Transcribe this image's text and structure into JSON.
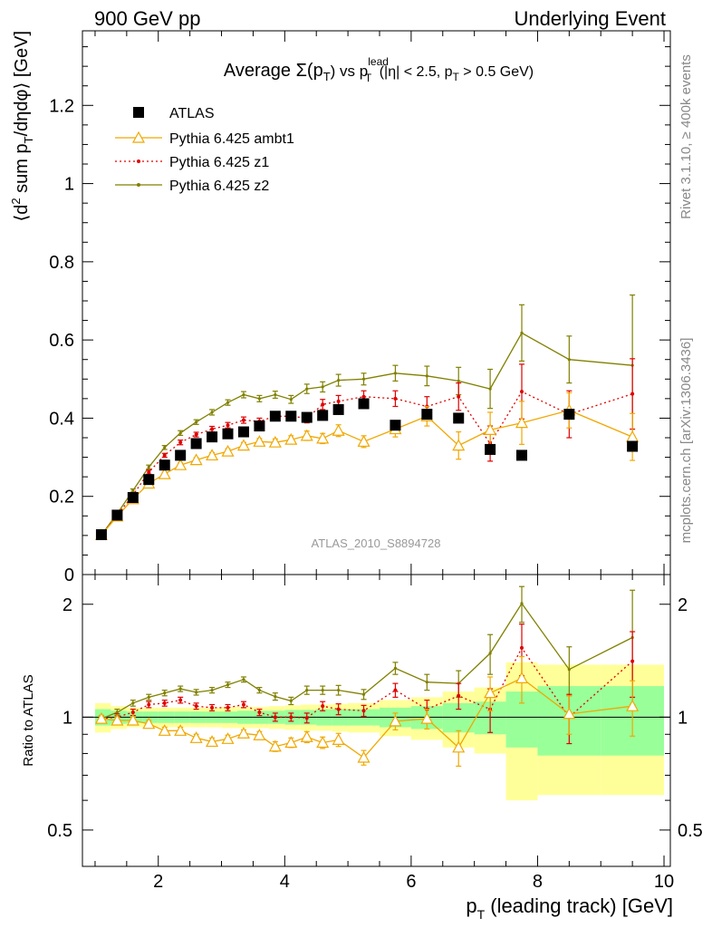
{
  "header": {
    "left": "900 GeV pp",
    "right": "Underlying Event"
  },
  "side_labels": {
    "rivet": "Rivet 3.1.10, ≥ 400k events",
    "mcplots": "mcplots.cern.ch [arXiv:1306.3436]"
  },
  "chart_data": [
    {
      "type": "line",
      "panel": "main",
      "title": {
        "prefix": "Average ",
        "sigma": "Σ(p",
        "sub_T": "T",
        "vs": ") vs p",
        "sup_lead": "lead",
        "tail": " (|η| < 2.5, p",
        "tail2": " > 0.5 GeV)"
      },
      "ylabel": {
        "a": "⟨d",
        "sup2": "2",
        "b": " sum p",
        "subT": "T",
        "c": "/dηdφ⟩ [GeV]"
      },
      "watermark": "ATLAS_2010_S8894728",
      "ylim": [
        0,
        1.4
      ],
      "yticks": [
        0,
        0.2,
        0.4,
        0.6,
        0.8,
        1,
        1.2
      ],
      "ytick_labels": [
        "0",
        "0.2",
        "0.4",
        "0.6",
        "0.8",
        "1",
        "1.2"
      ],
      "x": [
        1.1,
        1.35,
        1.6,
        1.85,
        2.1,
        2.35,
        2.6,
        2.85,
        3.1,
        3.35,
        3.6,
        3.85,
        4.1,
        4.35,
        4.6,
        4.85,
        5.25,
        5.75,
        6.25,
        6.75,
        7.25,
        7.75,
        8.5,
        9.5
      ],
      "legend": [
        "ATLAS",
        "Pythia 6.425 ambt1",
        "Pythia 6.425 z1",
        "Pythia 6.425 z2"
      ],
      "series": [
        {
          "name": "ATLAS",
          "style": "data",
          "color": "#000000",
          "values": [
            0.102,
            0.152,
            0.197,
            0.243,
            0.28,
            0.305,
            0.335,
            0.352,
            0.36,
            0.365,
            0.38,
            0.405,
            0.405,
            0.402,
            0.407,
            0.422,
            0.437,
            0.382,
            0.41,
            0.4,
            0.32,
            0.305,
            0.41,
            0.328
          ]
        },
        {
          "name": "Pythia 6.425 ambt1",
          "style": "triangle",
          "color": "#f0a800",
          "values": [
            0.101,
            0.149,
            0.193,
            0.233,
            0.257,
            0.28,
            0.293,
            0.305,
            0.315,
            0.33,
            0.34,
            0.338,
            0.345,
            0.355,
            0.348,
            0.368,
            0.34,
            0.372,
            0.405,
            0.33,
            0.37,
            0.388,
            0.42,
            0.352
          ],
          "errors": [
            0.003,
            0.004,
            0.004,
            0.005,
            0.005,
            0.006,
            0.006,
            0.007,
            0.007,
            0.008,
            0.008,
            0.009,
            0.01,
            0.012,
            0.013,
            0.015,
            0.015,
            0.02,
            0.025,
            0.035,
            0.045,
            0.055,
            0.045,
            0.06
          ]
        },
        {
          "name": "Pythia 6.425 z1",
          "style": "dot",
          "color": "#e00000",
          "values": [
            0.101,
            0.152,
            0.203,
            0.262,
            0.305,
            0.338,
            0.358,
            0.372,
            0.382,
            0.395,
            0.392,
            0.405,
            0.405,
            0.4,
            0.435,
            0.443,
            0.455,
            0.45,
            0.43,
            0.455,
            0.335,
            0.468,
            0.41,
            0.462
          ],
          "errors": [
            0.003,
            0.004,
            0.004,
            0.005,
            0.005,
            0.006,
            0.006,
            0.007,
            0.007,
            0.008,
            0.008,
            0.009,
            0.01,
            0.012,
            0.013,
            0.015,
            0.015,
            0.02,
            0.025,
            0.035,
            0.045,
            0.07,
            0.06,
            0.09
          ]
        },
        {
          "name": "Pythia 6.425 z2",
          "style": "small-dot",
          "color": "#808000",
          "values": [
            0.101,
            0.156,
            0.215,
            0.275,
            0.325,
            0.362,
            0.39,
            0.415,
            0.44,
            0.46,
            0.45,
            0.46,
            0.448,
            0.475,
            0.48,
            0.497,
            0.5,
            0.515,
            0.508,
            0.495,
            0.475,
            0.618,
            0.55,
            0.535
          ],
          "errors": [
            0.003,
            0.004,
            0.004,
            0.005,
            0.005,
            0.006,
            0.006,
            0.007,
            0.007,
            0.008,
            0.008,
            0.009,
            0.01,
            0.012,
            0.013,
            0.015,
            0.015,
            0.02,
            0.025,
            0.035,
            0.05,
            0.072,
            0.06,
            0.18
          ]
        }
      ]
    },
    {
      "type": "line",
      "panel": "ratio",
      "ylabel": "Ratio to ATLAS",
      "yscale": "log",
      "ylim": [
        0.4,
        2.4
      ],
      "yticks": [
        0.5,
        1,
        2
      ],
      "ytick_labels": [
        "0.5",
        "1",
        "2"
      ],
      "xlabel": {
        "a": "p",
        "subT": "T",
        "b": " (leading track) [GeV]"
      },
      "xlim": [
        0.8,
        10.1
      ],
      "xticks": [
        2,
        4,
        6,
        8,
        10
      ],
      "xtick_labels": [
        "2",
        "4",
        "6",
        "8",
        "10"
      ],
      "bin_edges": [
        1.0,
        1.25,
        1.5,
        1.75,
        2.0,
        2.25,
        2.5,
        2.75,
        3.0,
        3.25,
        3.5,
        3.75,
        4.0,
        4.25,
        4.5,
        4.75,
        5.0,
        5.5,
        6.0,
        6.5,
        7.0,
        7.5,
        8.0,
        9.0,
        10.0
      ],
      "band_green": [
        0.05,
        0.04,
        0.035,
        0.035,
        0.035,
        0.035,
        0.035,
        0.035,
        0.035,
        0.04,
        0.04,
        0.04,
        0.045,
        0.045,
        0.05,
        0.05,
        0.05,
        0.06,
        0.07,
        0.09,
        0.1,
        0.17,
        0.21,
        0.21
      ],
      "band_yellow": [
        0.09,
        0.07,
        0.06,
        0.06,
        0.06,
        0.06,
        0.06,
        0.06,
        0.065,
        0.065,
        0.065,
        0.07,
        0.075,
        0.08,
        0.08,
        0.085,
        0.09,
        0.11,
        0.13,
        0.17,
        0.2,
        0.4,
        0.38,
        0.38
      ],
      "series": [
        {
          "name": "Pythia 6.425 ambt1",
          "style": "triangle",
          "color": "#f0a800",
          "values": [
            0.99,
            0.98,
            0.98,
            0.96,
            0.92,
            0.92,
            0.88,
            0.86,
            0.875,
            0.905,
            0.895,
            0.835,
            0.855,
            0.885,
            0.855,
            0.87,
            0.78,
            0.975,
            0.99,
            0.83,
            1.16,
            1.27,
            1.02,
            1.07
          ],
          "errors": [
            0.02,
            0.02,
            0.02,
            0.02,
            0.02,
            0.02,
            0.02,
            0.02,
            0.02,
            0.02,
            0.02,
            0.025,
            0.025,
            0.03,
            0.03,
            0.035,
            0.035,
            0.05,
            0.06,
            0.09,
            0.12,
            0.18,
            0.12,
            0.18
          ]
        },
        {
          "name": "Pythia 6.425 z1",
          "style": "dot",
          "color": "#e00000",
          "values": [
            0.99,
            1.0,
            1.03,
            1.08,
            1.09,
            1.11,
            1.07,
            1.06,
            1.06,
            1.08,
            1.03,
            1.0,
            1.0,
            0.995,
            1.07,
            1.05,
            1.04,
            1.18,
            1.05,
            1.14,
            1.05,
            1.53,
            1.0,
            1.41
          ],
          "errors": [
            0.02,
            0.02,
            0.02,
            0.02,
            0.02,
            0.02,
            0.02,
            0.02,
            0.02,
            0.02,
            0.02,
            0.025,
            0.025,
            0.03,
            0.03,
            0.035,
            0.035,
            0.05,
            0.06,
            0.09,
            0.14,
            0.24,
            0.15,
            0.28
          ]
        },
        {
          "name": "Pythia 6.425 z2",
          "style": "small-dot",
          "color": "#808000",
          "values": [
            0.99,
            1.03,
            1.09,
            1.13,
            1.16,
            1.19,
            1.165,
            1.18,
            1.22,
            1.26,
            1.18,
            1.135,
            1.105,
            1.18,
            1.18,
            1.18,
            1.15,
            1.35,
            1.24,
            1.23,
            1.48,
            2.01,
            1.34,
            1.63
          ],
          "errors": [
            0.02,
            0.02,
            0.02,
            0.02,
            0.02,
            0.02,
            0.02,
            0.02,
            0.02,
            0.02,
            0.02,
            0.025,
            0.025,
            0.03,
            0.03,
            0.035,
            0.035,
            0.05,
            0.06,
            0.1,
            0.18,
            0.22,
            0.2,
            0.55
          ]
        }
      ]
    }
  ]
}
